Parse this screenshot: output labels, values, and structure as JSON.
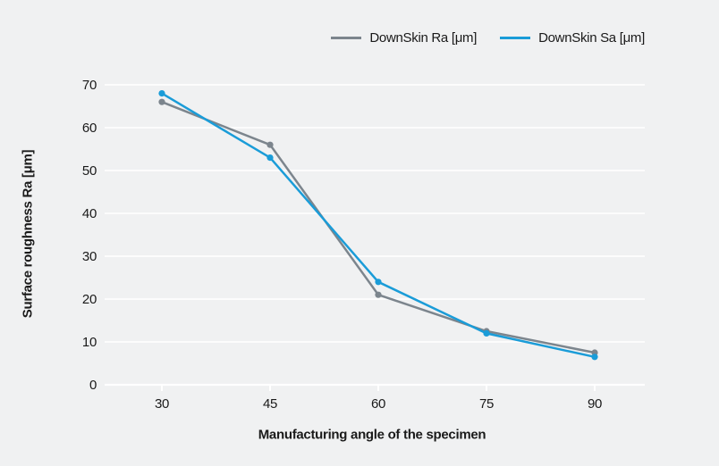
{
  "chart_data": {
    "type": "line",
    "title": "",
    "xlabel": "Manufacturing angle of the specimen",
    "ylabel": "Surface roughness Ra [μm]",
    "categories": [
      "30",
      "45",
      "60",
      "75",
      "90"
    ],
    "y_ticks": [
      0,
      10,
      20,
      30,
      40,
      50,
      60,
      70
    ],
    "ylim": [
      0,
      70
    ],
    "grid": "horizontal",
    "legend_position": "top-right",
    "marker": "circle",
    "series": [
      {
        "name": "DownSkin Ra [μm]",
        "color": "#7c858d",
        "values": [
          66,
          56,
          21,
          12.5,
          7.5
        ]
      },
      {
        "name": "DownSkin Sa [μm]",
        "color": "#1a9cd8",
        "values": [
          68,
          53,
          24,
          12,
          6.5
        ]
      }
    ]
  },
  "colors": {
    "background": "#f0f1f2",
    "gridline": "#ffffff",
    "text": "#1a1a1a"
  }
}
